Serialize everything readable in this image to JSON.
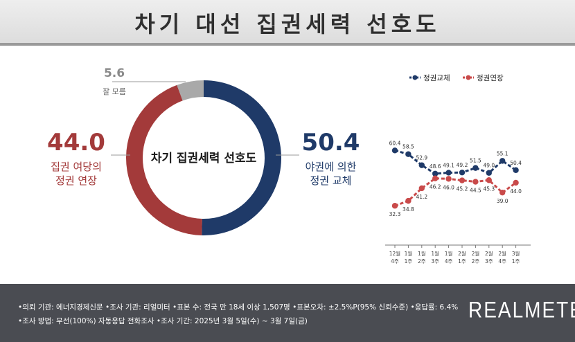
{
  "title": "차기 대선 집권세력 선호도",
  "donut": {
    "center_label": "차기 집권세력 선호도",
    "segments": [
      {
        "name": "야권에 의한 정권 교체",
        "value": 50.4,
        "color": "#1f3a68"
      },
      {
        "name": "집권 여당의 정권 연장",
        "value": 44.0,
        "color": "#a33a3a"
      },
      {
        "name": "잘 모름",
        "value": 5.6,
        "color": "#a9a9a9"
      }
    ],
    "labels": {
      "opposition_value": "50.4",
      "opposition_line1": "야권에 의한",
      "opposition_line2": "정권 교체",
      "ruling_value": "44.0",
      "ruling_line1": "집권 여당의",
      "ruling_line2": "정권 연장",
      "unknown_value": "5.6",
      "unknown_text": "잘 모름"
    }
  },
  "chart_data": [
    {
      "type": "pie",
      "title": "차기 집권세력 선호도",
      "categories": [
        "야권에 의한 정권 교체",
        "집권 여당의 정권 연장",
        "잘 모름"
      ],
      "values": [
        50.4,
        44.0,
        5.6
      ]
    },
    {
      "type": "line",
      "categories": [
        "12월 4주",
        "1월 1주",
        "1월 2주",
        "1월 3주",
        "1월 4주",
        "2월 1주",
        "2월 2주",
        "2월 3주",
        "2월 4주",
        "3월 1주"
      ],
      "ylim": [
        25,
        70
      ],
      "legend_position": "top",
      "series": [
        {
          "name": "정권교체",
          "color": "#1f3a68",
          "values": [
            60.4,
            58.5,
            52.9,
            48.6,
            49.1,
            49.2,
            51.5,
            49.0,
            55.1,
            50.4
          ]
        },
        {
          "name": "정권연장",
          "color": "#c94a4a",
          "values": [
            32.3,
            34.8,
            41.2,
            46.2,
            46.0,
            45.2,
            44.5,
            45.3,
            39.0,
            44.0
          ]
        }
      ]
    }
  ],
  "footer": {
    "line1": "•의뢰 기관: 에너지경제신문  •조사 기관: 리얼미터  •표본 수: 전국 만 18세 이상 1,507명  •표본오차: ±2.5%P(95% 신뢰수준)  •응답률: 6.4%",
    "line2": "•조사 방법: 무선(100%) 자동응답 전화조사  •조사 기간: 2025년 3월 5일(수) ~ 3월 7일(금)",
    "logo": "REALMETER"
  }
}
